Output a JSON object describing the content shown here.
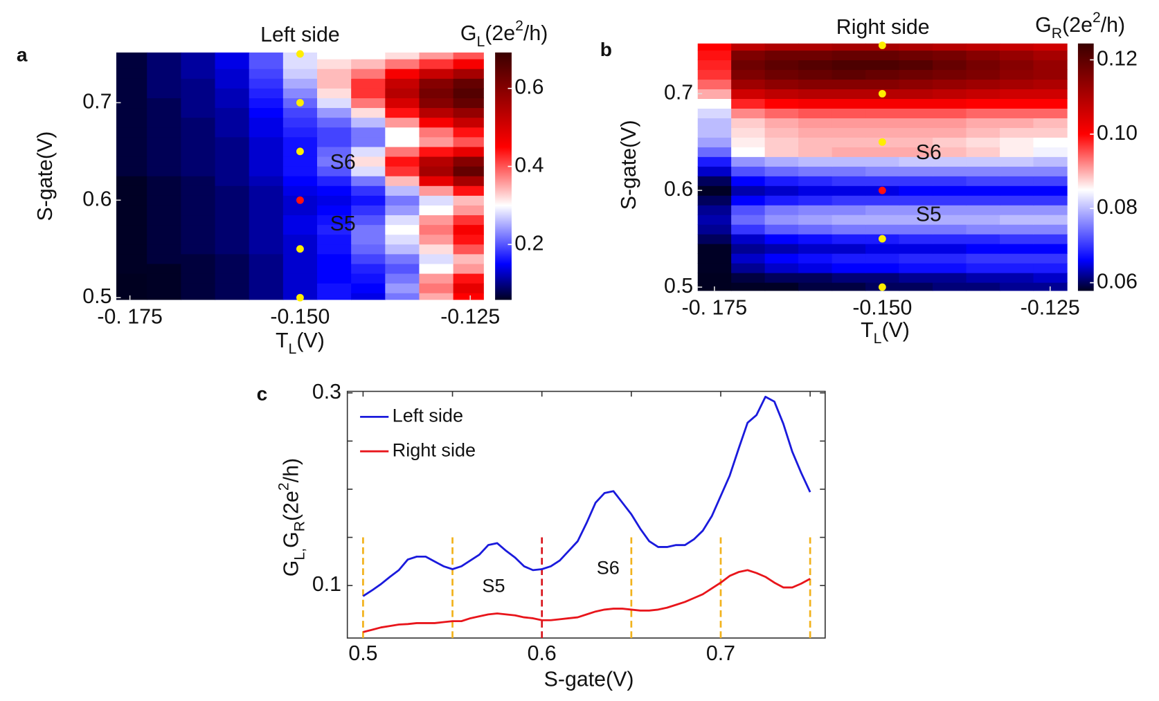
{
  "chart_data": [
    {
      "type": "heatmap",
      "panel": "a",
      "title": "Left side",
      "colorbar_label": [
        "G",
        "L",
        "(2e",
        "2",
        "/h)"
      ],
      "xlabel": [
        "T",
        "L",
        "(V)"
      ],
      "ylabel": "S-gate(V)",
      "x": [
        -0.175,
        -0.17,
        -0.165,
        -0.16,
        -0.155,
        -0.15,
        -0.145,
        -0.14,
        -0.135,
        -0.13,
        -0.125
      ],
      "y": [
        0.5,
        0.51,
        0.52,
        0.53,
        0.54,
        0.55,
        0.56,
        0.57,
        0.58,
        0.59,
        0.6,
        0.61,
        0.62,
        0.63,
        0.64,
        0.65,
        0.66,
        0.67,
        0.68,
        0.69,
        0.7,
        0.71,
        0.72,
        0.73,
        0.74,
        0.75
      ],
      "z": [
        [
          0.05,
          0.06,
          0.07,
          0.08,
          0.1,
          0.13,
          0.16,
          0.14,
          0.22,
          0.35,
          0.45
        ],
        [
          0.05,
          0.06,
          0.07,
          0.08,
          0.1,
          0.13,
          0.16,
          0.15,
          0.24,
          0.38,
          0.48
        ],
        [
          0.05,
          0.06,
          0.07,
          0.08,
          0.1,
          0.13,
          0.15,
          0.16,
          0.22,
          0.36,
          0.44
        ],
        [
          0.06,
          0.06,
          0.07,
          0.08,
          0.1,
          0.13,
          0.15,
          0.17,
          0.2,
          0.3,
          0.36
        ],
        [
          0.06,
          0.07,
          0.07,
          0.08,
          0.1,
          0.13,
          0.15,
          0.19,
          0.22,
          0.28,
          0.34
        ],
        [
          0.06,
          0.07,
          0.08,
          0.09,
          0.11,
          0.13,
          0.16,
          0.21,
          0.26,
          0.32,
          0.4
        ],
        [
          0.06,
          0.07,
          0.08,
          0.09,
          0.11,
          0.13,
          0.16,
          0.22,
          0.28,
          0.36,
          0.44
        ],
        [
          0.06,
          0.07,
          0.08,
          0.09,
          0.11,
          0.14,
          0.17,
          0.22,
          0.3,
          0.38,
          0.46
        ],
        [
          0.06,
          0.07,
          0.08,
          0.09,
          0.11,
          0.14,
          0.16,
          0.2,
          0.28,
          0.36,
          0.42
        ],
        [
          0.06,
          0.07,
          0.08,
          0.09,
          0.11,
          0.13,
          0.15,
          0.18,
          0.24,
          0.3,
          0.36
        ],
        [
          0.06,
          0.07,
          0.08,
          0.09,
          0.11,
          0.13,
          0.14,
          0.16,
          0.22,
          0.28,
          0.34
        ],
        [
          0.06,
          0.07,
          0.08,
          0.09,
          0.11,
          0.14,
          0.15,
          0.18,
          0.26,
          0.36,
          0.44
        ],
        [
          0.06,
          0.07,
          0.08,
          0.1,
          0.12,
          0.15,
          0.17,
          0.22,
          0.34,
          0.48,
          0.56
        ],
        [
          0.07,
          0.08,
          0.09,
          0.1,
          0.13,
          0.16,
          0.2,
          0.28,
          0.42,
          0.56,
          0.64
        ],
        [
          0.07,
          0.08,
          0.09,
          0.1,
          0.13,
          0.16,
          0.22,
          0.32,
          0.44,
          0.54,
          0.6
        ],
        [
          0.07,
          0.08,
          0.09,
          0.1,
          0.13,
          0.16,
          0.21,
          0.28,
          0.38,
          0.44,
          0.48
        ],
        [
          0.07,
          0.08,
          0.09,
          0.1,
          0.13,
          0.16,
          0.19,
          0.22,
          0.3,
          0.36,
          0.4
        ],
        [
          0.07,
          0.08,
          0.09,
          0.11,
          0.14,
          0.17,
          0.19,
          0.22,
          0.3,
          0.38,
          0.44
        ],
        [
          0.07,
          0.08,
          0.09,
          0.11,
          0.14,
          0.18,
          0.21,
          0.26,
          0.36,
          0.46,
          0.52
        ],
        [
          0.07,
          0.08,
          0.1,
          0.11,
          0.15,
          0.19,
          0.24,
          0.32,
          0.44,
          0.54,
          0.58
        ],
        [
          0.07,
          0.08,
          0.1,
          0.12,
          0.16,
          0.21,
          0.28,
          0.38,
          0.5,
          0.6,
          0.64
        ],
        [
          0.07,
          0.09,
          0.1,
          0.12,
          0.17,
          0.23,
          0.32,
          0.42,
          0.54,
          0.62,
          0.66
        ],
        [
          0.07,
          0.09,
          0.1,
          0.13,
          0.18,
          0.25,
          0.34,
          0.42,
          0.52,
          0.6,
          0.64
        ],
        [
          0.07,
          0.09,
          0.11,
          0.13,
          0.19,
          0.27,
          0.34,
          0.38,
          0.46,
          0.52,
          0.56
        ],
        [
          0.07,
          0.09,
          0.11,
          0.14,
          0.2,
          0.28,
          0.32,
          0.34,
          0.38,
          0.42,
          0.46
        ],
        [
          0.07,
          0.09,
          0.11,
          0.14,
          0.2,
          0.28,
          0.3,
          0.3,
          0.32,
          0.36,
          0.4
        ]
      ],
      "xlim": [
        -0.177,
        -0.123
      ],
      "ylim": [
        0.4977,
        0.7515
      ],
      "xticks": [
        {
          "value": -0.175,
          "label": "-0. 175"
        },
        {
          "value": -0.15,
          "label": "-0.150"
        },
        {
          "value": -0.125,
          "label": "-0.125"
        }
      ],
      "yticks": [
        0.5,
        0.6,
        0.7
      ],
      "clim": [
        0.058,
        0.692
      ],
      "cbticks": [
        0.2,
        0.4,
        0.6
      ],
      "colorscale": [
        [
          0.058,
          "#000020"
        ],
        [
          0.15,
          "#0000ff"
        ],
        [
          0.3,
          "#ffffff"
        ],
        [
          0.45,
          "#ff0000"
        ],
        [
          0.692,
          "#3a0000"
        ]
      ],
      "points": {
        "x": [
          -0.15,
          -0.15,
          -0.15,
          -0.15,
          -0.15,
          -0.15
        ],
        "y": [
          0.5,
          0.55,
          0.6,
          0.65,
          0.7,
          0.75
        ],
        "colors": [
          "#ffee00",
          "#ffee00",
          "#ff1010",
          "#ffee00",
          "#ffee00",
          "#ffee00"
        ]
      },
      "annotations": [
        {
          "text": "S6",
          "x": -0.1456,
          "y": 0.6377,
          "color": "#e0101a"
        },
        {
          "text": "S5",
          "x": -0.1456,
          "y": 0.5746,
          "color": "#e0101a"
        }
      ]
    },
    {
      "type": "heatmap",
      "panel": "b",
      "title": "Right side",
      "colorbar_label": [
        "G",
        "R",
        "(2e",
        "2",
        "/h)"
      ],
      "xlabel": [
        "T",
        "L",
        "(V)"
      ],
      "ylabel": "S-gate(V)",
      "x": [
        -0.175,
        -0.17,
        -0.165,
        -0.16,
        -0.155,
        -0.15,
        -0.145,
        -0.14,
        -0.135,
        -0.13,
        -0.125
      ],
      "y": [
        0.5,
        0.51,
        0.52,
        0.53,
        0.54,
        0.55,
        0.56,
        0.57,
        0.58,
        0.59,
        0.6,
        0.61,
        0.62,
        0.63,
        0.64,
        0.65,
        0.66,
        0.67,
        0.68,
        0.69,
        0.7,
        0.71,
        0.72,
        0.73,
        0.74,
        0.75
      ],
      "z": [
        [
          0.055,
          0.058,
          0.058,
          0.059,
          0.059,
          0.06,
          0.06,
          0.061,
          0.061,
          0.062,
          0.062
        ],
        [
          0.056,
          0.059,
          0.06,
          0.06,
          0.061,
          0.061,
          0.062,
          0.062,
          0.063,
          0.063,
          0.064
        ],
        [
          0.058,
          0.062,
          0.064,
          0.065,
          0.066,
          0.066,
          0.067,
          0.067,
          0.068,
          0.068,
          0.068
        ],
        [
          0.058,
          0.064,
          0.066,
          0.067,
          0.068,
          0.068,
          0.069,
          0.069,
          0.07,
          0.07,
          0.07
        ],
        [
          0.058,
          0.062,
          0.063,
          0.064,
          0.064,
          0.065,
          0.065,
          0.065,
          0.066,
          0.066,
          0.066
        ],
        [
          0.06,
          0.064,
          0.066,
          0.067,
          0.068,
          0.068,
          0.069,
          0.069,
          0.069,
          0.07,
          0.07
        ],
        [
          0.062,
          0.07,
          0.073,
          0.074,
          0.075,
          0.075,
          0.075,
          0.075,
          0.076,
          0.076,
          0.076
        ],
        [
          0.063,
          0.074,
          0.077,
          0.078,
          0.079,
          0.079,
          0.079,
          0.079,
          0.079,
          0.08,
          0.08
        ],
        [
          0.062,
          0.072,
          0.075,
          0.076,
          0.076,
          0.077,
          0.077,
          0.077,
          0.077,
          0.077,
          0.077
        ],
        [
          0.06,
          0.066,
          0.068,
          0.069,
          0.07,
          0.07,
          0.07,
          0.07,
          0.07,
          0.07,
          0.07
        ],
        [
          0.058,
          0.063,
          0.064,
          0.065,
          0.065,
          0.065,
          0.066,
          0.066,
          0.066,
          0.066,
          0.066
        ],
        [
          0.06,
          0.066,
          0.068,
          0.069,
          0.07,
          0.07,
          0.07,
          0.07,
          0.071,
          0.071,
          0.071
        ],
        [
          0.064,
          0.072,
          0.074,
          0.075,
          0.075,
          0.076,
          0.076,
          0.076,
          0.076,
          0.076,
          0.076
        ],
        [
          0.068,
          0.077,
          0.079,
          0.08,
          0.08,
          0.08,
          0.081,
          0.081,
          0.081,
          0.081,
          0.08
        ],
        [
          0.074,
          0.085,
          0.088,
          0.089,
          0.09,
          0.09,
          0.09,
          0.089,
          0.088,
          0.086,
          0.084
        ],
        [
          0.078,
          0.086,
          0.088,
          0.089,
          0.089,
          0.089,
          0.089,
          0.088,
          0.087,
          0.086,
          0.085
        ],
        [
          0.08,
          0.087,
          0.089,
          0.09,
          0.09,
          0.09,
          0.09,
          0.09,
          0.089,
          0.088,
          0.088
        ],
        [
          0.08,
          0.088,
          0.09,
          0.091,
          0.091,
          0.091,
          0.091,
          0.091,
          0.09,
          0.09,
          0.089
        ],
        [
          0.082,
          0.092,
          0.094,
          0.095,
          0.095,
          0.095,
          0.095,
          0.095,
          0.094,
          0.094,
          0.094
        ],
        [
          0.085,
          0.098,
          0.1,
          0.101,
          0.101,
          0.101,
          0.101,
          0.101,
          0.1,
          0.1,
          0.1
        ],
        [
          0.09,
          0.106,
          0.108,
          0.109,
          0.109,
          0.109,
          0.109,
          0.108,
          0.107,
          0.106,
          0.106
        ],
        [
          0.094,
          0.112,
          0.114,
          0.115,
          0.115,
          0.115,
          0.114,
          0.113,
          0.112,
          0.111,
          0.11
        ],
        [
          0.097,
          0.116,
          0.118,
          0.119,
          0.12,
          0.119,
          0.118,
          0.117,
          0.116,
          0.114,
          0.113
        ],
        [
          0.098,
          0.118,
          0.12,
          0.121,
          0.122,
          0.122,
          0.121,
          0.119,
          0.117,
          0.115,
          0.113
        ],
        [
          0.099,
          0.116,
          0.118,
          0.118,
          0.119,
          0.119,
          0.118,
          0.117,
          0.115,
          0.113,
          0.111
        ],
        [
          0.1,
          0.108,
          0.11,
          0.11,
          0.111,
          0.111,
          0.11,
          0.109,
          0.108,
          0.107,
          0.106
        ]
      ],
      "xlim": [
        -0.1775,
        -0.1222
      ],
      "ylim": [
        0.4961,
        0.7519
      ],
      "xticks": [
        {
          "value": -0.175,
          "label": "-0. 175"
        },
        {
          "value": -0.15,
          "label": "-0.150"
        },
        {
          "value": -0.125,
          "label": "-0.125"
        }
      ],
      "yticks": [
        0.5,
        0.6,
        0.7
      ],
      "clim": [
        0.0578,
        0.1244
      ],
      "cbticks": [
        0.06,
        0.08,
        {
          "value": 0.1,
          "label": "0.10"
        },
        0.12
      ],
      "colorscale": [
        [
          0.0578,
          "#000020"
        ],
        [
          0.066,
          "#0000ff"
        ],
        [
          0.085,
          "#ffffff"
        ],
        [
          0.1,
          "#ff0000"
        ],
        [
          0.1244,
          "#3a0000"
        ]
      ],
      "points": {
        "x": [
          -0.15,
          -0.15,
          -0.15,
          -0.15,
          -0.15,
          -0.15
        ],
        "y": [
          0.5,
          0.55,
          0.6,
          0.65,
          0.7,
          0.75
        ],
        "colors": [
          "#ffee00",
          "#ffee00",
          "#ff1010",
          "#ffee00",
          "#ffee00",
          "#ffee00"
        ]
      },
      "annotations": [
        {
          "text": "S6",
          "x": -0.145,
          "y": 0.638,
          "color": "#e0101a"
        },
        {
          "text": "S5",
          "x": -0.145,
          "y": 0.574,
          "color": "#e0101a"
        }
      ]
    },
    {
      "type": "line",
      "panel": "c",
      "xlabel": "S-gate(V)",
      "ylabel": [
        "G",
        "L,",
        "G",
        "R",
        "(2e",
        "2",
        "/h)"
      ],
      "x": [
        0.5,
        0.505,
        0.51,
        0.515,
        0.52,
        0.525,
        0.53,
        0.535,
        0.54,
        0.545,
        0.55,
        0.555,
        0.56,
        0.565,
        0.57,
        0.575,
        0.58,
        0.585,
        0.59,
        0.595,
        0.6,
        0.605,
        0.61,
        0.615,
        0.62,
        0.625,
        0.63,
        0.635,
        0.64,
        0.645,
        0.65,
        0.655,
        0.66,
        0.665,
        0.67,
        0.675,
        0.68,
        0.685,
        0.69,
        0.695,
        0.7,
        0.705,
        0.71,
        0.715,
        0.72,
        0.725,
        0.73,
        0.735,
        0.74,
        0.745,
        0.75
      ],
      "series": [
        {
          "name": "Left side",
          "color": "#1a1adc",
          "values": [
            0.089,
            0.095,
            0.1015,
            0.109,
            0.116,
            0.127,
            0.13,
            0.13,
            0.125,
            0.12,
            0.117,
            0.12,
            0.126,
            0.132,
            0.142,
            0.144,
            0.136,
            0.129,
            0.12,
            0.116,
            0.117,
            0.12,
            0.126,
            0.136,
            0.146,
            0.165,
            0.186,
            0.196,
            0.198,
            0.186,
            0.174,
            0.159,
            0.146,
            0.14,
            0.14,
            0.142,
            0.142,
            0.148,
            0.157,
            0.172,
            0.193,
            0.214,
            0.242,
            0.269,
            0.277,
            0.296,
            0.291,
            0.268,
            0.239,
            0.217,
            0.197
          ]
        },
        {
          "name": "Right side",
          "color": "#e8151b",
          "values": [
            0.0517,
            0.054,
            0.0565,
            0.058,
            0.0595,
            0.06,
            0.061,
            0.061,
            0.061,
            0.062,
            0.063,
            0.063,
            0.066,
            0.068,
            0.07,
            0.071,
            0.07,
            0.069,
            0.067,
            0.066,
            0.064,
            0.064,
            0.065,
            0.066,
            0.067,
            0.07,
            0.073,
            0.075,
            0.076,
            0.076,
            0.075,
            0.074,
            0.074,
            0.075,
            0.077,
            0.08,
            0.083,
            0.087,
            0.091,
            0.097,
            0.103,
            0.11,
            0.114,
            0.116,
            0.113,
            0.109,
            0.103,
            0.098,
            0.098,
            0.102,
            0.107
          ]
        }
      ],
      "xlim": [
        0.4912,
        0.7584
      ],
      "ylim": [
        0.0455,
        0.3016
      ],
      "xticks": [
        0.5,
        0.6,
        0.7
      ],
      "xminor_ticks": [
        0.55,
        0.65,
        0.75
      ],
      "yticks": [
        0.1,
        0.3
      ],
      "yminor_ticks": [
        0.15,
        0.2,
        0.25
      ],
      "vlines": {
        "x": [
          0.5,
          0.55,
          0.6,
          0.65,
          0.7,
          0.75
        ],
        "colors": [
          "#f2b21c",
          "#f2b21c",
          "#d8141c",
          "#f2b21c",
          "#f2b21c",
          "#f2b21c"
        ],
        "top": 0.15
      },
      "legend": "upper left",
      "annotations": [
        {
          "text": "S5",
          "x": 0.573,
          "y": 0.0985,
          "color": "#111111"
        },
        {
          "text": "S6",
          "x": 0.637,
          "y": 0.117,
          "color": "#111111"
        }
      ]
    }
  ]
}
